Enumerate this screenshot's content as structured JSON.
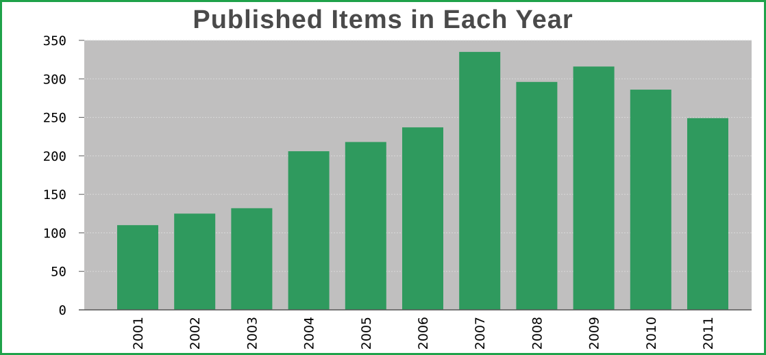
{
  "chart_data": {
    "type": "bar",
    "title": "Published Items in Each Year",
    "xlabel": "",
    "ylabel": "",
    "categories": [
      "2001",
      "2002",
      "2003",
      "2004",
      "2005",
      "2006",
      "2007",
      "2008",
      "2009",
      "2010",
      "2011"
    ],
    "values": [
      110,
      125,
      132,
      206,
      218,
      237,
      335,
      296,
      316,
      286,
      249
    ],
    "ylim": [
      0,
      350
    ],
    "yticks": [
      0,
      50,
      100,
      150,
      200,
      250,
      300,
      350
    ],
    "grid": true,
    "legend": "none",
    "colors": {
      "bar": "#2f9a5e",
      "plot_background": "#c0bfbf",
      "gridline": "#d9d9d9",
      "frame": "#1fa24a"
    }
  }
}
